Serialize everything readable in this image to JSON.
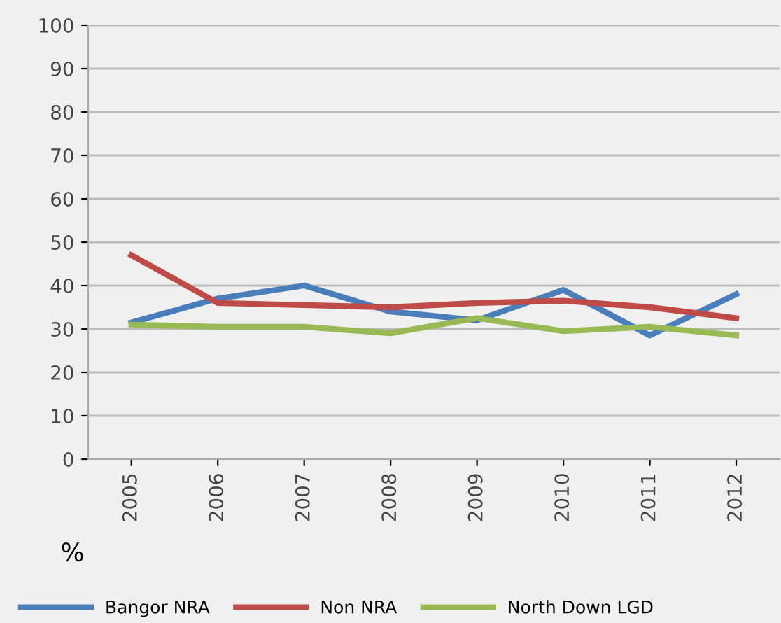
{
  "chart_data": {
    "type": "line",
    "ylabel": "%",
    "categories": [
      "2005",
      "2006",
      "2007",
      "2008",
      "2009",
      "2010",
      "2011",
      "2012"
    ],
    "series": [
      {
        "name": "Bangor NRA",
        "color": "#4a7ebb",
        "values": [
          31.5,
          37,
          40,
          34,
          32,
          39,
          28.5,
          38
        ]
      },
      {
        "name": "Non NRA",
        "color": "#be4b48",
        "values": [
          47,
          36,
          35.5,
          35,
          36,
          36.5,
          35,
          32.5
        ]
      },
      {
        "name": "North Down LGD",
        "color": "#98b954",
        "values": [
          31,
          30.5,
          30.5,
          29,
          32.5,
          29.5,
          30.5,
          28.5
        ]
      }
    ],
    "ylim": [
      0,
      100
    ],
    "yticks": [
      0,
      10,
      20,
      30,
      40,
      50,
      60,
      70,
      80,
      90,
      100
    ],
    "grid": "y",
    "legend": "bottom",
    "marker": "none",
    "line_style": "solid"
  }
}
